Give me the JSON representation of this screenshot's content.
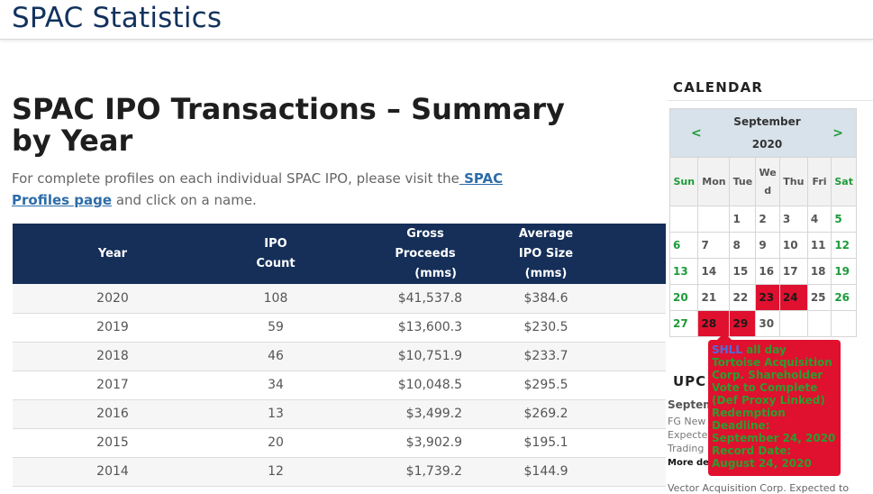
{
  "site": {
    "title": "SPAC Statistics"
  },
  "page": {
    "title": "SPAC IPO Transactions – Summary by Year",
    "intro_before": "For complete profiles on each individual SPAC IPO, please visit the",
    "intro_link": " SPAC Profiles page",
    "intro_after": " and click on a name."
  },
  "table": {
    "headers": {
      "year": "Year",
      "count_1": "IPO",
      "count_2": "Count",
      "gross_1": "Gross",
      "gross_2": "Proceeds",
      "gross_3": "(mms)",
      "avg_1": "Average",
      "avg_2": "IPO Size",
      "avg_3": "(mms)"
    },
    "rows": [
      {
        "year": "2020",
        "count": "108",
        "gross": "$41,537.8",
        "avg": "$384.6"
      },
      {
        "year": "2019",
        "count": "59",
        "gross": "$13,600.3",
        "avg": "$230.5"
      },
      {
        "year": "2018",
        "count": "46",
        "gross": "$10,751.9",
        "avg": "$233.7"
      },
      {
        "year": "2017",
        "count": "34",
        "gross": "$10,048.5",
        "avg": "$295.5"
      },
      {
        "year": "2016",
        "count": "13",
        "gross": "$3,499.2",
        "avg": "$269.2"
      },
      {
        "year": "2015",
        "count": "20",
        "gross": "$3,902.9",
        "avg": "$195.1"
      },
      {
        "year": "2014",
        "count": "12",
        "gross": "$1,739.2",
        "avg": "$144.9"
      }
    ]
  },
  "calendar": {
    "heading": "CALENDAR",
    "month": "September",
    "year": "2020",
    "prev": "<",
    "next": ">",
    "dow": {
      "sun": "Sun",
      "mon": "Mon",
      "tue": "Tue",
      "wed_1": "We",
      "wed_2": "d",
      "thu": "Thu",
      "fri": "Fri",
      "sat": "Sat"
    },
    "days": {
      "d1": "1",
      "d2": "2",
      "d3": "3",
      "d4": "4",
      "d5": "5",
      "d6": "6",
      "d7": "7",
      "d8": "8",
      "d9": "9",
      "d10": "10",
      "d11": "11",
      "d12": "12",
      "d13": "13",
      "d14": "14",
      "d15": "15",
      "d16": "16",
      "d17": "17",
      "d18": "18",
      "d19": "19",
      "d20": "20",
      "d21": "21",
      "d22": "22",
      "d23": "23",
      "d24": "24",
      "d25": "25",
      "d26": "26",
      "d27": "27",
      "d28": "28",
      "d29": "29",
      "d30": "30"
    },
    "event_color": "#e0102f",
    "weekend_color": "#1e9b3a"
  },
  "tooltip": {
    "ticker": "SHLL",
    "when": " all day",
    "body": "Tortoise Acquisition Corp. Shareholder Vote to Complete (Def Proxy Linked) Redemption Deadline: September 24, 2020 Record Date: August 24, 2020"
  },
  "upcoming": {
    "heading": "UPC",
    "date": "Septem",
    "text_1": "FG New",
    "text_2": "Expecte",
    "text_3": "Trading",
    "more": "More de",
    "next": "Vector Acquisition Corp. Expected to"
  }
}
